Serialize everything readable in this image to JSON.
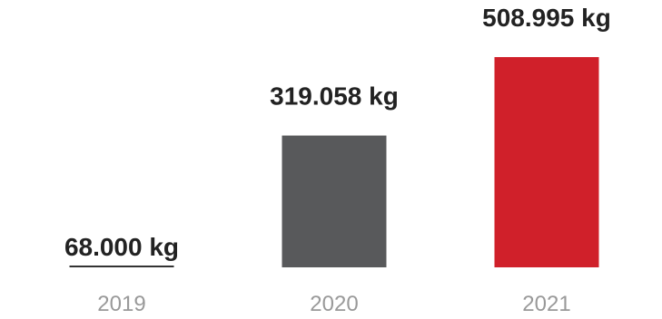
{
  "chart_data": {
    "type": "bar",
    "categories": [
      "2019",
      "2020",
      "2021"
    ],
    "values": [
      68000,
      319058,
      508995
    ],
    "value_labels": [
      "68.000 kg",
      "319.058 kg",
      "508.995 kg"
    ],
    "unit": "kg",
    "ylim": [
      0,
      508995
    ],
    "grid": false,
    "colors": [
      "#333333",
      "#58595b",
      "#d0202a"
    ]
  }
}
